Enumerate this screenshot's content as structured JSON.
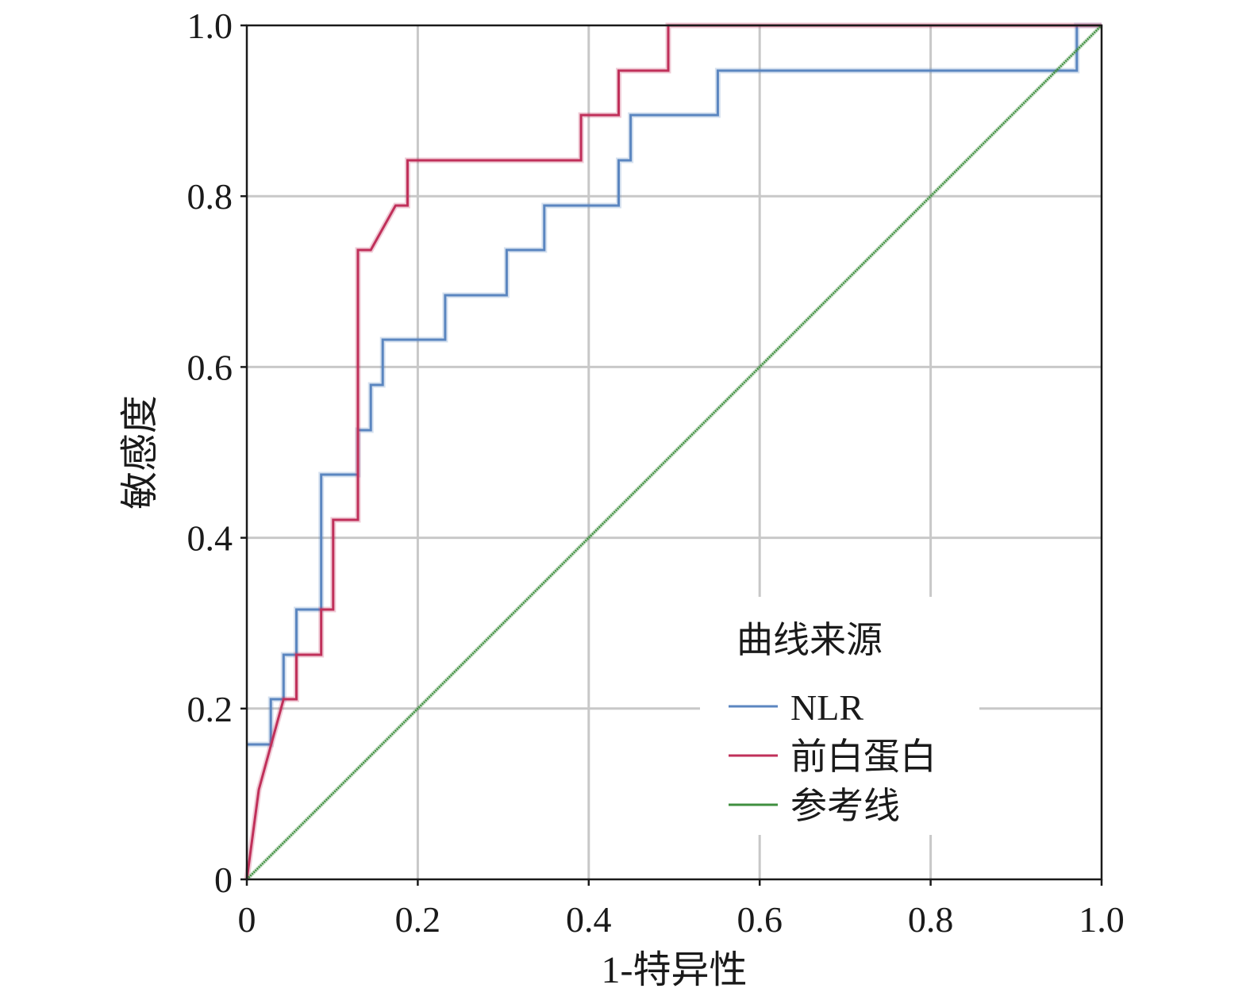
{
  "chart_data": {
    "type": "line",
    "title": "",
    "xlabel": "1-特异性",
    "ylabel": "敏感度",
    "xlim": [
      0,
      1.0
    ],
    "ylim": [
      0,
      1.0
    ],
    "grid": true,
    "x_ticks": [
      {
        "value": 0,
        "label": "0"
      },
      {
        "value": 0.2,
        "label": "0.2"
      },
      {
        "value": 0.4,
        "label": "0.4"
      },
      {
        "value": 0.6,
        "label": "0.6"
      },
      {
        "value": 0.8,
        "label": "0.8"
      },
      {
        "value": 1.0,
        "label": "1.0"
      }
    ],
    "y_ticks": [
      {
        "value": 0,
        "label": "0"
      },
      {
        "value": 0.2,
        "label": "0.2"
      },
      {
        "value": 0.4,
        "label": "0.4"
      },
      {
        "value": 0.6,
        "label": "0.6"
      },
      {
        "value": 0.8,
        "label": "0.8"
      },
      {
        "value": 1.0,
        "label": "1.0"
      }
    ],
    "legend": {
      "title": "曲线来源",
      "placement": "bottom-right"
    },
    "series": [
      {
        "name": "NLR",
        "color": "#5b86c0",
        "points": [
          [
            0,
            0.158
          ],
          [
            0.028,
            0.158
          ],
          [
            0.028,
            0.211
          ],
          [
            0.043,
            0.211
          ],
          [
            0.043,
            0.263
          ],
          [
            0.058,
            0.263
          ],
          [
            0.058,
            0.316
          ],
          [
            0.087,
            0.316
          ],
          [
            0.087,
            0.474
          ],
          [
            0.13,
            0.474
          ],
          [
            0.13,
            0.526
          ],
          [
            0.145,
            0.526
          ],
          [
            0.145,
            0.579
          ],
          [
            0.159,
            0.579
          ],
          [
            0.159,
            0.632
          ],
          [
            0.232,
            0.632
          ],
          [
            0.232,
            0.684
          ],
          [
            0.304,
            0.684
          ],
          [
            0.304,
            0.737
          ],
          [
            0.348,
            0.737
          ],
          [
            0.348,
            0.789
          ],
          [
            0.435,
            0.789
          ],
          [
            0.435,
            0.842
          ],
          [
            0.449,
            0.842
          ],
          [
            0.449,
            0.895
          ],
          [
            0.551,
            0.895
          ],
          [
            0.551,
            0.947
          ],
          [
            0.971,
            0.947
          ],
          [
            0.971,
            1.0
          ],
          [
            1.0,
            1.0
          ]
        ]
      },
      {
        "name": "前白蛋白",
        "color": "#c0305a",
        "points": [
          [
            0,
            0
          ],
          [
            0.014,
            0.105
          ],
          [
            0.043,
            0.211
          ],
          [
            0.058,
            0.211
          ],
          [
            0.058,
            0.263
          ],
          [
            0.087,
            0.263
          ],
          [
            0.087,
            0.316
          ],
          [
            0.101,
            0.316
          ],
          [
            0.101,
            0.421
          ],
          [
            0.13,
            0.421
          ],
          [
            0.13,
            0.737
          ],
          [
            0.145,
            0.737
          ],
          [
            0.174,
            0.789
          ],
          [
            0.188,
            0.789
          ],
          [
            0.188,
            0.842
          ],
          [
            0.391,
            0.842
          ],
          [
            0.391,
            0.895
          ],
          [
            0.435,
            0.895
          ],
          [
            0.435,
            0.947
          ],
          [
            0.493,
            0.947
          ],
          [
            0.493,
            1.0
          ],
          [
            1.0,
            1.0
          ]
        ]
      },
      {
        "name": "参考线",
        "color": "#3f8f3f",
        "points": [
          [
            0,
            0
          ],
          [
            1.0,
            1.0
          ]
        ]
      }
    ]
  }
}
